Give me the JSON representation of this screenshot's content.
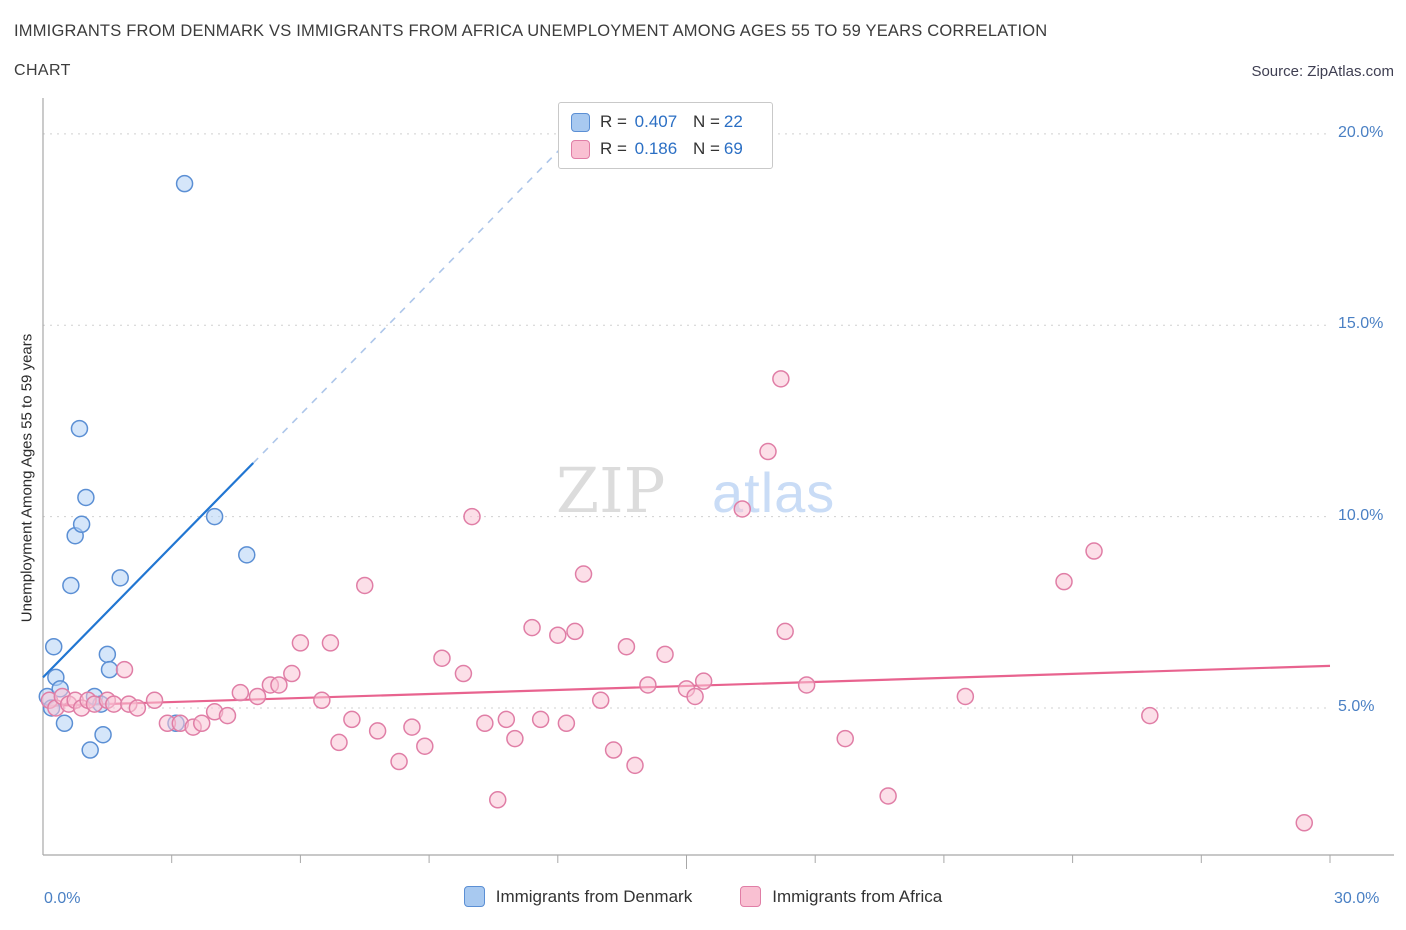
{
  "header": {
    "title": "IMMIGRANTS FROM DENMARK VS IMMIGRANTS FROM AFRICA UNEMPLOYMENT AMONG AGES 55 TO 59 YEARS CORRELATION",
    "subtitle": "CHART",
    "source": "Source: ZipAtlas.com"
  },
  "watermark": {
    "zip": "ZIP",
    "atlas": "atlas"
  },
  "y_axis_title": "Unemployment Among Ages 55 to 59 years",
  "axis_labels": {
    "y_20": "20.0%",
    "y_15": "15.0%",
    "y_10": "10.0%",
    "y_5": "5.0%",
    "x_0": "0.0%",
    "x_30": "30.0%"
  },
  "legend_stats": {
    "rows": [
      {
        "series": "denmark",
        "r_label": "R =",
        "r_value": "0.407",
        "n_label": "N =",
        "n_value": "22"
      },
      {
        "series": "africa",
        "r_label": "R =",
        "r_value": "0.186",
        "n_label": "N =",
        "n_value": "69"
      }
    ]
  },
  "bottom_legend": {
    "denmark_label": "Immigrants from Denmark",
    "africa_label": "Immigrants from Africa"
  },
  "colors": {
    "accent_blue": "#2b6fc4",
    "axis_label_blue": "#4a80c4",
    "denmark_fill": "#b3d2f6",
    "denmark_stroke": "#5b8fd4",
    "denmark_trend": "#2176d2",
    "denmark_trend_dashed": "#adc6ea",
    "africa_fill": "#f9c5d6",
    "africa_stroke": "#e07ea6",
    "africa_trend": "#e8638f",
    "gridline": "#d0d0d0",
    "axis": "#a8a8a8",
    "watermark_gray": "#dcdcdc",
    "watermark_blue": "#c9dcf6"
  },
  "chart_data": {
    "type": "scatter",
    "title": "Immigrants from Denmark vs Immigrants from Africa Unemployment Among Ages 55 to 59 years Correlation",
    "xlabel": "",
    "ylabel": "Unemployment Among Ages 55 to 59 years",
    "xlim": [
      0,
      30
    ],
    "ylim": [
      0,
      21
    ],
    "x_tick_labels": [
      "0.0%",
      "30.0%"
    ],
    "y_tick_labels": [
      "5.0%",
      "10.0%",
      "15.0%",
      "20.0%"
    ],
    "y_grid_values": [
      5,
      10,
      15,
      20
    ],
    "grid": "horizontal-dashed",
    "legend_position": "bottom-center",
    "series": [
      {
        "name": "Immigrants from Denmark",
        "r": 0.407,
        "n": 22,
        "fill": "#b3d2f6",
        "stroke": "#5b8fd4",
        "points": [
          [
            0.1,
            5.3
          ],
          [
            0.2,
            5.0
          ],
          [
            0.25,
            6.6
          ],
          [
            0.3,
            5.8
          ],
          [
            0.4,
            5.5
          ],
          [
            0.5,
            4.6
          ],
          [
            0.65,
            8.2
          ],
          [
            0.75,
            9.5
          ],
          [
            0.85,
            12.3
          ],
          [
            0.9,
            9.8
          ],
          [
            1.0,
            10.5
          ],
          [
            1.1,
            3.9
          ],
          [
            1.2,
            5.3
          ],
          [
            1.35,
            5.1
          ],
          [
            1.4,
            4.3
          ],
          [
            1.5,
            6.4
          ],
          [
            1.55,
            6.0
          ],
          [
            1.8,
            8.4
          ],
          [
            3.1,
            4.6
          ],
          [
            3.3,
            18.7
          ],
          [
            4.0,
            10.0
          ],
          [
            4.75,
            9.0
          ]
        ]
      },
      {
        "name": "Immigrants from Africa",
        "r": 0.186,
        "n": 69,
        "fill": "#f9c5d6",
        "stroke": "#e07ea6",
        "points": [
          [
            0.15,
            5.2
          ],
          [
            0.3,
            5.0
          ],
          [
            0.45,
            5.3
          ],
          [
            0.6,
            5.1
          ],
          [
            0.75,
            5.2
          ],
          [
            0.9,
            5.0
          ],
          [
            1.05,
            5.2
          ],
          [
            1.2,
            5.1
          ],
          [
            1.5,
            5.2
          ],
          [
            1.65,
            5.1
          ],
          [
            1.9,
            6.0
          ],
          [
            2.0,
            5.1
          ],
          [
            2.2,
            5.0
          ],
          [
            2.6,
            5.2
          ],
          [
            2.9,
            4.6
          ],
          [
            3.2,
            4.6
          ],
          [
            3.5,
            4.5
          ],
          [
            3.7,
            4.6
          ],
          [
            4.0,
            4.9
          ],
          [
            4.3,
            4.8
          ],
          [
            4.6,
            5.4
          ],
          [
            5.0,
            5.3
          ],
          [
            5.3,
            5.6
          ],
          [
            5.5,
            5.6
          ],
          [
            5.8,
            5.9
          ],
          [
            6.0,
            6.7
          ],
          [
            6.5,
            5.2
          ],
          [
            6.7,
            6.7
          ],
          [
            6.9,
            4.1
          ],
          [
            7.2,
            4.7
          ],
          [
            7.5,
            8.2
          ],
          [
            7.8,
            4.4
          ],
          [
            8.3,
            3.6
          ],
          [
            8.6,
            4.5
          ],
          [
            8.9,
            4.0
          ],
          [
            9.3,
            6.3
          ],
          [
            9.8,
            5.9
          ],
          [
            10.0,
            10.0
          ],
          [
            10.3,
            4.6
          ],
          [
            10.6,
            2.6
          ],
          [
            10.8,
            4.7
          ],
          [
            11.0,
            4.2
          ],
          [
            11.4,
            7.1
          ],
          [
            11.6,
            4.7
          ],
          [
            12.0,
            6.9
          ],
          [
            12.2,
            4.6
          ],
          [
            12.4,
            7.0
          ],
          [
            12.6,
            8.5
          ],
          [
            13.0,
            5.2
          ],
          [
            13.3,
            3.9
          ],
          [
            13.6,
            6.6
          ],
          [
            13.8,
            3.5
          ],
          [
            14.1,
            5.6
          ],
          [
            14.5,
            6.4
          ],
          [
            15.0,
            5.5
          ],
          [
            15.2,
            5.3
          ],
          [
            15.4,
            5.7
          ],
          [
            16.3,
            10.2
          ],
          [
            16.9,
            11.7
          ],
          [
            17.2,
            13.6
          ],
          [
            17.3,
            7.0
          ],
          [
            17.8,
            5.6
          ],
          [
            18.7,
            4.2
          ],
          [
            19.7,
            2.7
          ],
          [
            21.5,
            5.3
          ],
          [
            23.8,
            8.3
          ],
          [
            24.5,
            9.1
          ],
          [
            25.8,
            4.8
          ],
          [
            29.4,
            2.0
          ]
        ]
      }
    ],
    "trendlines": [
      {
        "series": 0,
        "color": "#2176d2",
        "solid": [
          [
            0,
            5.8
          ],
          [
            4.9,
            11.4
          ]
        ],
        "dashed": [
          [
            4.9,
            11.4
          ],
          [
            12.4,
            20.0
          ]
        ],
        "dash_color": "#adc6ea"
      },
      {
        "series": 1,
        "color": "#e8638f",
        "solid": [
          [
            0,
            5.05
          ],
          [
            30,
            6.1
          ]
        ]
      }
    ]
  }
}
